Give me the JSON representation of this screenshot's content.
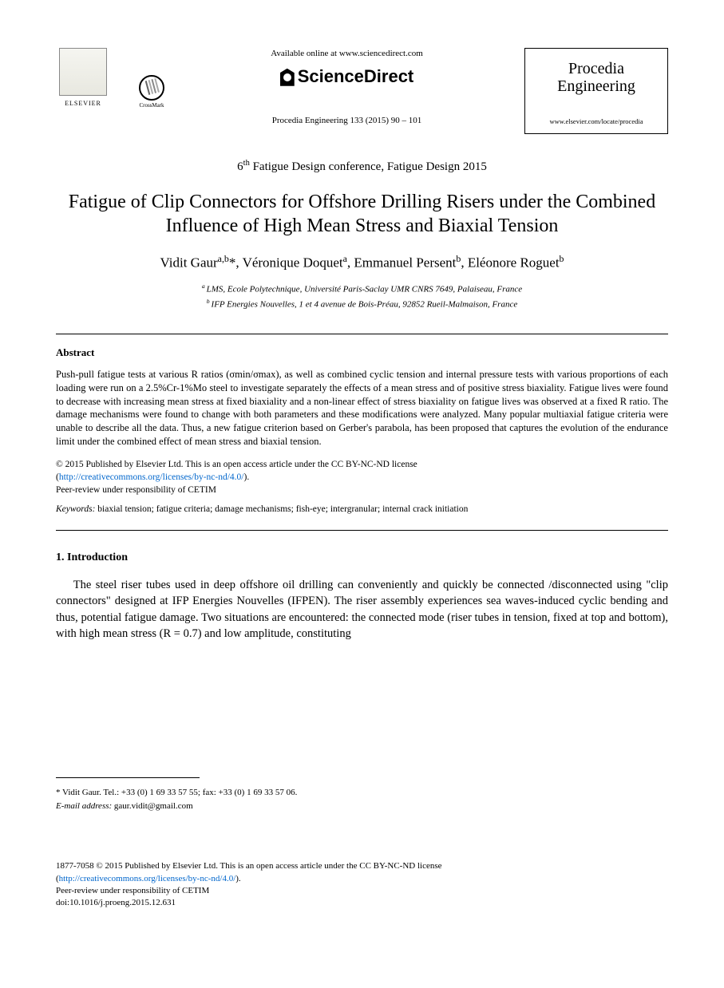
{
  "header": {
    "available_text": "Available online at www.sciencedirect.com",
    "sciencedirect": "ScienceDirect",
    "journal_ref": "Procedia Engineering 133 (2015) 90 – 101",
    "elsevier_label": "ELSEVIER",
    "crossmark_label": "CrossMark",
    "journal_name_line1": "Procedia",
    "journal_name_line2": "Engineering",
    "journal_url": "www.elsevier.com/locate/procedia"
  },
  "conference": "6th Fatigue Design conference, Fatigue Design 2015",
  "title": "Fatigue of Clip Connectors for Offshore Drilling Risers under the Combined Influence of High Mean Stress and Biaxial Tension",
  "authors_html": "Vidit Gaur",
  "author1": "Vidit Gaur",
  "author1_sup": "a,b",
  "author2": "Véronique Doquet",
  "author2_sup": "a",
  "author3": "Emmanuel Persent",
  "author3_sup": "b",
  "author4": "Eléonore Roguet",
  "author4_sup": "b",
  "affil_a": "LMS, Ecole Polytechnique, Université Paris-Saclay UMR CNRS 7649, Palaiseau, France",
  "affil_b": "IFP Energies Nouvelles, 1 et 4 avenue de Bois-Préau, 92852 Rueil-Malmaison, France",
  "abstract_heading": "Abstract",
  "abstract_text": "Push-pull fatigue tests at various R ratios (σmin/σmax), as well as combined cyclic tension and internal pressure tests with various proportions of each loading were run on a 2.5%Cr-1%Mo steel to investigate separately the effects of a mean stress and of positive stress biaxiality. Fatigue lives were found to decrease with increasing mean stress at fixed biaxiality and a non-linear effect of stress biaxiality on fatigue lives was observed at a fixed R ratio. The damage mechanisms were found to change with both parameters and these modifications were analyzed. Many popular multiaxial fatigue criteria were unable to describe all the data. Thus, a new fatigue criterion based on Gerber's parabola, has been proposed that captures the evolution of the endurance limit under the combined effect of mean stress and biaxial tension.",
  "copyright_line1": "© 2015 Published by Elsevier Ltd. This is an open access article under the CC BY-NC-ND license",
  "copyright_link": "http://creativecommons.org/licenses/by-nc-nd/4.0/",
  "copyright_line2": "Peer-review under responsibility of CETIM",
  "keywords_label": "Keywords:",
  "keywords_text": "biaxial tension; fatigue criteria; damage mechanisms; fish-eye; intergranular; internal crack initiation",
  "intro_heading": "1. Introduction",
  "intro_text": "The steel riser tubes used in deep offshore oil drilling can conveniently and quickly be connected /disconnected using \"clip connectors\" designed at IFP Energies Nouvelles (IFPEN). The riser assembly experiences sea waves-induced cyclic bending and thus, potential fatigue damage. Two situations are encountered: the connected mode (riser tubes in tension, fixed at top and bottom), with high mean stress (R = 0.7) and low amplitude, constituting",
  "footnote_contact": "* Vidit Gaur. Tel.: +33 (0) 1 69 33 57 55; fax: +33 (0) 1 69 33 57 06.",
  "footnote_email_label": "E-mail address:",
  "footnote_email": "gaur.vidit@gmail.com",
  "footer_issn": "1877-7058 © 2015 Published by Elsevier Ltd. This is an open access article under the CC BY-NC-ND license",
  "footer_link": "http://creativecommons.org/licenses/by-nc-nd/4.0/",
  "footer_peer": "Peer-review under responsibility of CETIM",
  "footer_doi": "doi:10.1016/j.proeng.2015.12.631"
}
